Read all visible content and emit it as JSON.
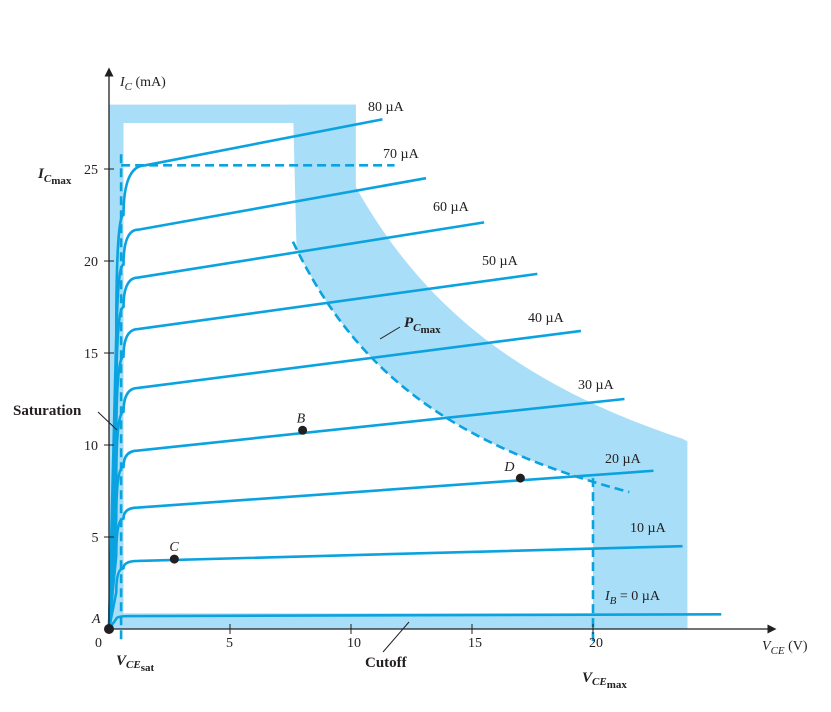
{
  "chart_data": {
    "type": "line",
    "title": "",
    "xlabel": "V_CE (V)",
    "ylabel": "I_C (mA)",
    "x_axis": {
      "ticks": [
        0,
        5,
        10,
        15,
        20
      ],
      "tick_labels": [
        "0",
        "5",
        "10",
        "15",
        "20"
      ]
    },
    "y_axis": {
      "ticks": [
        5,
        10,
        15,
        20,
        25
      ],
      "tick_labels": [
        "5",
        "10",
        "15",
        "20",
        "25"
      ]
    },
    "xlim": [
      0,
      28
    ],
    "ylim": [
      0,
      29
    ],
    "series": [
      {
        "name": "I_B = 0 µA",
        "label": "I_B = 0 µA",
        "points": [
          [
            0,
            0
          ],
          [
            0.3,
            0.55
          ],
          [
            0.8,
            0.7
          ],
          [
            25.3,
            0.8
          ]
        ]
      },
      {
        "name": "10 µA",
        "label": "10 µA",
        "points": [
          [
            0,
            0
          ],
          [
            0.3,
            2.0
          ],
          [
            0.6,
            3.3
          ],
          [
            1.2,
            3.7
          ],
          [
            23.7,
            4.5
          ]
        ]
      },
      {
        "name": "20 µA",
        "label": "20 µA",
        "points": [
          [
            0,
            0
          ],
          [
            0.3,
            4.0
          ],
          [
            0.6,
            6.0
          ],
          [
            1.2,
            6.6
          ],
          [
            22.5,
            8.6
          ]
        ]
      },
      {
        "name": "30 µA",
        "label": "30 µA",
        "points": [
          [
            0,
            0
          ],
          [
            0.3,
            6.0
          ],
          [
            0.6,
            8.8
          ],
          [
            1.2,
            9.7
          ],
          [
            21.3,
            12.5
          ]
        ]
      },
      {
        "name": "40 µA",
        "label": "40 µA",
        "points": [
          [
            0,
            0
          ],
          [
            0.3,
            8.0
          ],
          [
            0.6,
            11.8
          ],
          [
            1.2,
            13.1
          ],
          [
            19.5,
            16.2
          ]
        ]
      },
      {
        "name": "50 µA",
        "label": "50 µA",
        "points": [
          [
            0,
            0
          ],
          [
            0.3,
            10.0
          ],
          [
            0.6,
            14.8
          ],
          [
            1.2,
            16.3
          ],
          [
            17.7,
            19.3
          ]
        ]
      },
      {
        "name": "60 µA",
        "label": "60 µA",
        "points": [
          [
            0,
            0
          ],
          [
            0.3,
            12.0
          ],
          [
            0.6,
            17.5
          ],
          [
            1.2,
            19.1
          ],
          [
            15.5,
            22.1
          ]
        ]
      },
      {
        "name": "70 µA",
        "label": "70 µA",
        "points": [
          [
            0,
            0
          ],
          [
            0.3,
            14.0
          ],
          [
            0.6,
            19.8
          ],
          [
            1.2,
            21.7
          ],
          [
            13.1,
            24.5
          ]
        ]
      },
      {
        "name": "80 µA",
        "label": "80 µA",
        "points": [
          [
            0,
            0
          ],
          [
            0.3,
            16.0
          ],
          [
            0.6,
            22.5
          ],
          [
            1.5,
            25.2
          ],
          [
            11.3,
            27.7
          ]
        ]
      }
    ],
    "limits": {
      "IC_max": 25,
      "VCE_max": 20,
      "VCE_sat": 0.5,
      "PC_max_mW": 160,
      "PC_max_curve_x_range": [
        7.6,
        21.5
      ]
    },
    "points": [
      {
        "label": "A",
        "x": 0,
        "y": 0
      },
      {
        "label": "B",
        "x": 8,
        "y": 10.8
      },
      {
        "label": "C",
        "x": 2.7,
        "y": 3.8
      },
      {
        "label": "D",
        "x": 17,
        "y": 8.2
      }
    ],
    "labels": {
      "y_axis_main": "I",
      "y_axis_sub": "C",
      "y_axis_unit": " (mA)",
      "x_axis_main": "V",
      "x_axis_sub": "CE",
      "x_axis_unit": " (V)",
      "ic_max_main": "I",
      "ic_max_sub1": "C",
      "ic_max_sub2": "max",
      "vce_sat_main": "V",
      "vce_sat_sub1": "CE",
      "vce_sat_sub2": "sat",
      "vce_max_main": "V",
      "vce_max_sub1": "CE",
      "vce_max_sub2": "max",
      "pc_max_main": "P",
      "pc_max_sub1": "C",
      "pc_max_sub2": "max",
      "saturation": "Saturation",
      "cutoff": "Cutoff",
      "ib_main": "I",
      "ib_sub": "B",
      "ib_value": " = 0 µA"
    }
  },
  "colors": {
    "curve": "#0aa3e0",
    "region": "#a8def7",
    "axis": "#231f20",
    "text": "#231f20"
  }
}
